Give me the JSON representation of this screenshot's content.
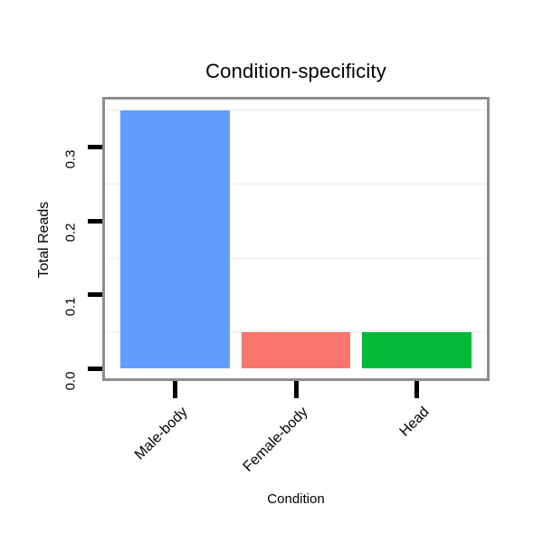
{
  "chart_data": {
    "type": "bar",
    "title": "Condition-specificity",
    "xlabel": "Condition",
    "ylabel": "Total Reads",
    "categories": [
      "Male-body",
      "Female-body",
      "Head"
    ],
    "values": [
      0.35,
      0.05,
      0.05
    ],
    "bar_colors": [
      "#619CFF",
      "#F8766D",
      "#00BA38"
    ],
    "y_tick_labels": [
      "0.0",
      "0.1",
      "0.2",
      "0.3"
    ],
    "y_tick_values": [
      0.0,
      0.1,
      0.2,
      0.3
    ],
    "minor_gridline_values": [
      0.05,
      0.15,
      0.25,
      0.35
    ],
    "ylim": [
      -0.013,
      0.365
    ],
    "grid": "minor-horizontal-only",
    "legend": false,
    "colors": {
      "panel_border": "#8E8E8E",
      "minor_grid": "#F6F6F6",
      "tick": "#000000",
      "text": "#000000",
      "background": "#FFFFFF"
    }
  }
}
